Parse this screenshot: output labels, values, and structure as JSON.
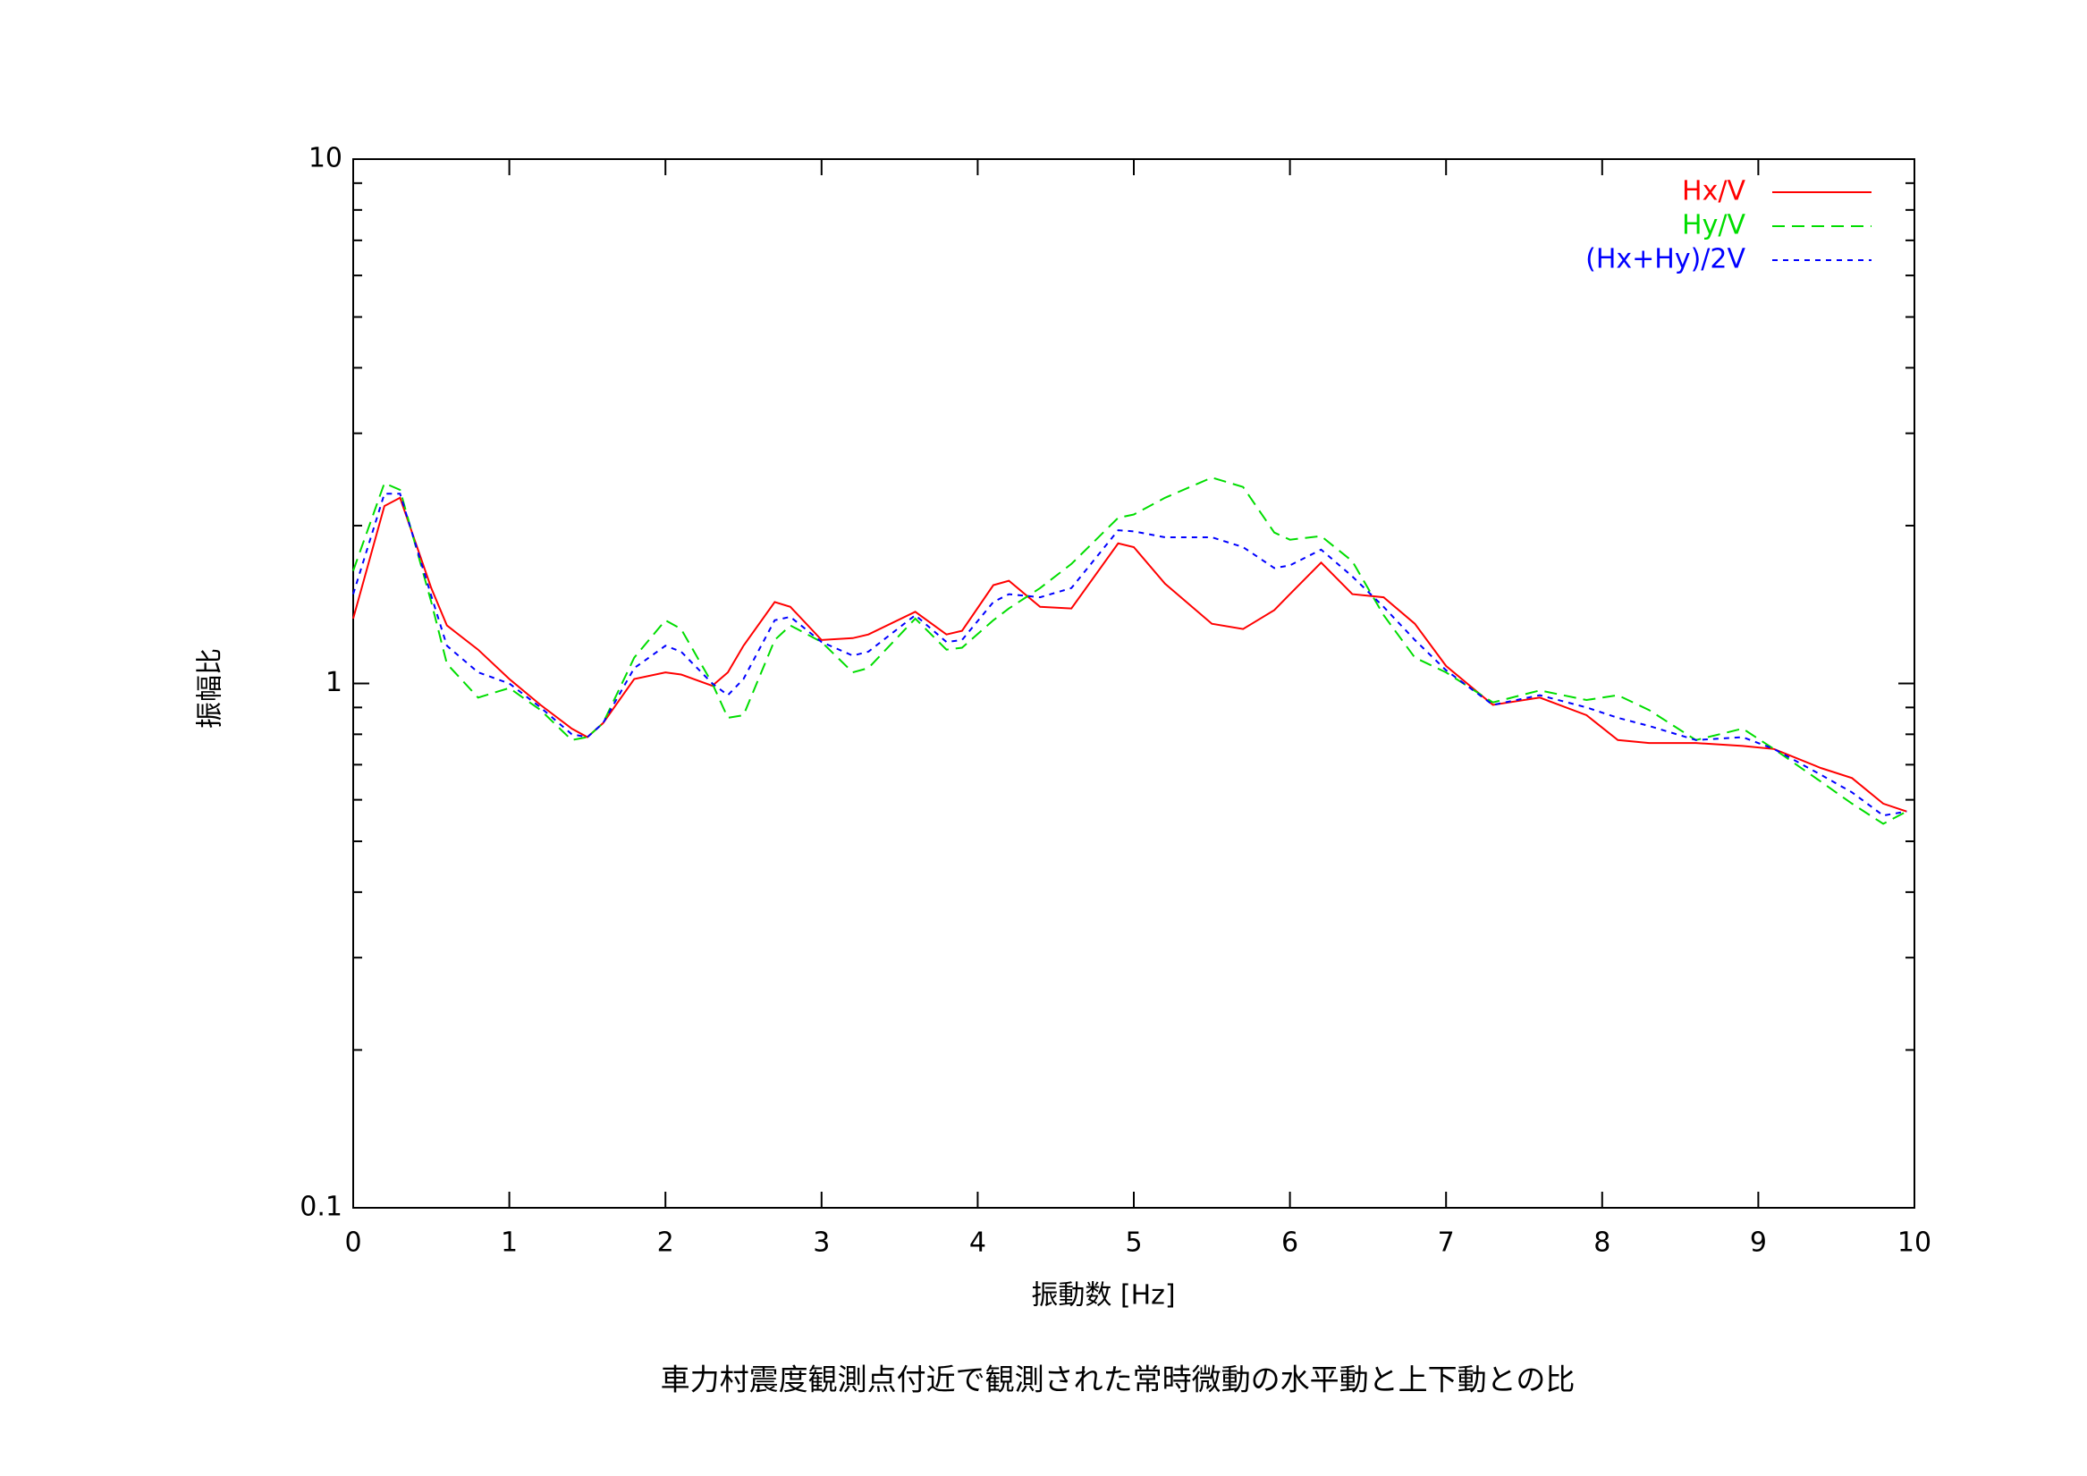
{
  "chart_data": {
    "type": "line",
    "title": "車力村震度観測点付近で観測された常時微動の水平動と上下動との比",
    "xlabel": "振動数 [Hz]",
    "ylabel": "振幅比",
    "log_y": true,
    "xlim": [
      0,
      10
    ],
    "xticks": [
      0,
      1,
      2,
      3,
      4,
      5,
      6,
      7,
      8,
      9,
      10
    ],
    "ylim": [
      0.1,
      10
    ],
    "yticks": [
      0.1,
      1,
      10
    ],
    "yminorticks": [
      0.2,
      0.3,
      0.4,
      0.5,
      0.6,
      0.7,
      0.8,
      0.9,
      2,
      3,
      4,
      5,
      6,
      7,
      8,
      9
    ],
    "legend": "top-right",
    "x": [
      0,
      0.2,
      0.3,
      0.5,
      0.6,
      0.8,
      1.0,
      1.2,
      1.4,
      1.5,
      1.6,
      1.8,
      2.0,
      2.1,
      2.3,
      2.4,
      2.5,
      2.7,
      2.8,
      3.0,
      3.2,
      3.3,
      3.6,
      3.8,
      3.9,
      4.1,
      4.2,
      4.4,
      4.6,
      4.9,
      5.0,
      5.2,
      5.5,
      5.7,
      5.9,
      6.0,
      6.2,
      6.4,
      6.6,
      6.8,
      7.0,
      7.3,
      7.6,
      7.9,
      8.1,
      8.3,
      8.6,
      8.9,
      9.1,
      9.4,
      9.6,
      9.8,
      9.95
    ],
    "series": [
      {
        "name": "Hx/V",
        "color": "#ff0000",
        "dash": "none",
        "values": [
          1.33,
          2.18,
          2.26,
          1.52,
          1.29,
          1.16,
          1.02,
          0.91,
          0.82,
          0.79,
          0.84,
          1.02,
          1.05,
          1.04,
          0.99,
          1.05,
          1.18,
          1.43,
          1.4,
          1.21,
          1.22,
          1.24,
          1.37,
          1.24,
          1.26,
          1.54,
          1.57,
          1.4,
          1.39,
          1.85,
          1.82,
          1.55,
          1.3,
          1.27,
          1.38,
          1.48,
          1.7,
          1.48,
          1.46,
          1.3,
          1.08,
          0.91,
          0.94,
          0.87,
          0.78,
          0.77,
          0.77,
          0.76,
          0.75,
          0.69,
          0.66,
          0.59,
          0.57
        ]
      },
      {
        "name": "Hy/V",
        "color": "#00dd00",
        "dash": "14 8",
        "values": [
          1.64,
          2.41,
          2.34,
          1.43,
          1.09,
          0.94,
          0.98,
          0.89,
          0.78,
          0.79,
          0.84,
          1.12,
          1.32,
          1.27,
          1.0,
          0.86,
          0.87,
          1.21,
          1.29,
          1.2,
          1.05,
          1.07,
          1.33,
          1.16,
          1.17,
          1.32,
          1.39,
          1.52,
          1.69,
          2.07,
          2.1,
          2.26,
          2.47,
          2.37,
          1.94,
          1.88,
          1.91,
          1.71,
          1.35,
          1.12,
          1.05,
          0.92,
          0.97,
          0.93,
          0.95,
          0.89,
          0.78,
          0.82,
          0.75,
          0.65,
          0.59,
          0.54,
          0.57
        ]
      },
      {
        "name": "(Hx+Hy)/2V",
        "color": "#0000ff",
        "dash": "6 6",
        "values": [
          1.48,
          2.3,
          2.3,
          1.47,
          1.18,
          1.05,
          1.0,
          0.9,
          0.8,
          0.79,
          0.84,
          1.07,
          1.18,
          1.15,
          1.0,
          0.95,
          1.02,
          1.32,
          1.34,
          1.2,
          1.13,
          1.15,
          1.35,
          1.2,
          1.21,
          1.43,
          1.48,
          1.46,
          1.52,
          1.96,
          1.95,
          1.9,
          1.9,
          1.82,
          1.66,
          1.68,
          1.8,
          1.6,
          1.4,
          1.21,
          1.06,
          0.91,
          0.95,
          0.9,
          0.86,
          0.83,
          0.78,
          0.79,
          0.75,
          0.67,
          0.62,
          0.56,
          0.57
        ]
      }
    ]
  }
}
